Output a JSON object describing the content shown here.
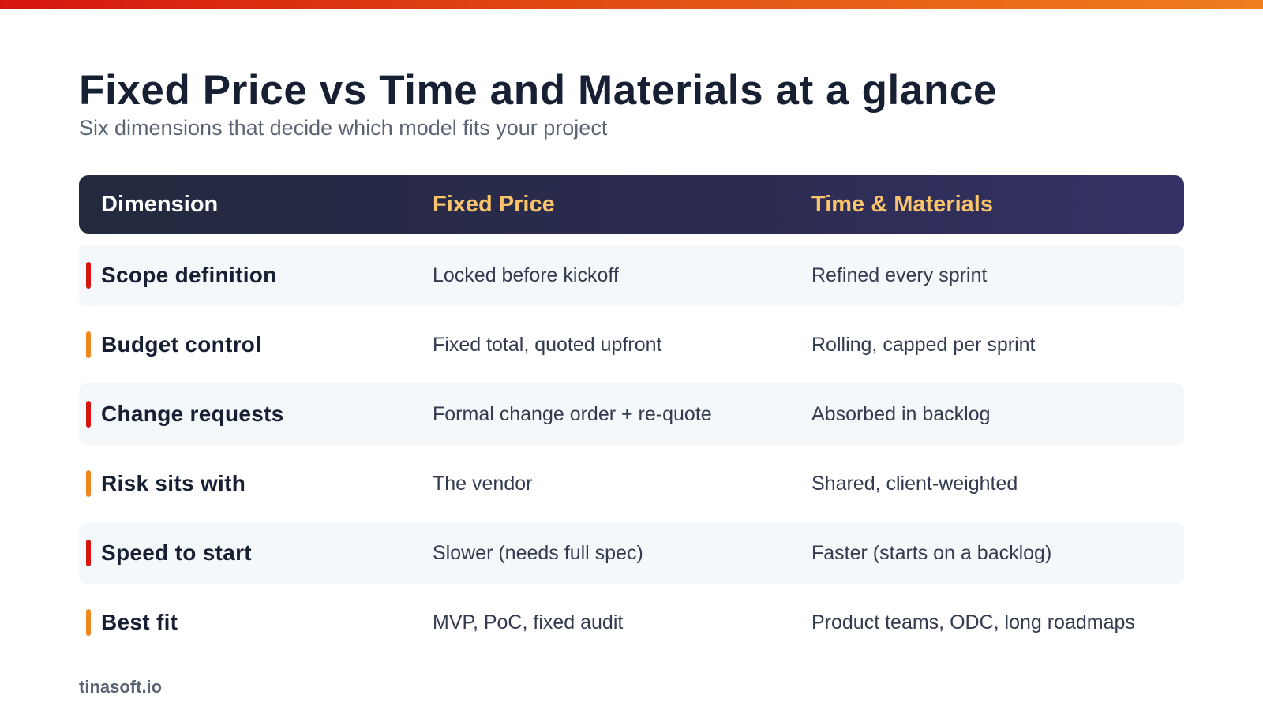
{
  "title": "Fixed Price vs Time and Materials at a glance",
  "subtitle": "Six dimensions that decide which model fits your project",
  "colors": {
    "accent_red": "#d6150f",
    "accent_orange": "#f0861e",
    "header_bg": "#2b2b4f",
    "header_highlight": "#f9c46b",
    "row_shade": "#f5f8fb"
  },
  "table": {
    "headers": {
      "dimension": "Dimension",
      "fixed_price": "Fixed Price",
      "time_materials": "Time & Materials"
    },
    "rows": [
      {
        "dimension": "Scope definition",
        "fixed_price": "Locked before kickoff",
        "time_materials": "Refined every sprint",
        "accent": "red"
      },
      {
        "dimension": "Budget control",
        "fixed_price": "Fixed total, quoted upfront",
        "time_materials": "Rolling, capped per sprint",
        "accent": "orange"
      },
      {
        "dimension": "Change requests",
        "fixed_price": "Formal change order + re-quote",
        "time_materials": "Absorbed in backlog",
        "accent": "red"
      },
      {
        "dimension": "Risk sits with",
        "fixed_price": "The vendor",
        "time_materials": "Shared, client-weighted",
        "accent": "orange"
      },
      {
        "dimension": "Speed to start",
        "fixed_price": "Slower (needs full spec)",
        "time_materials": "Faster (starts on a backlog)",
        "accent": "red"
      },
      {
        "dimension": "Best fit",
        "fixed_price": "MVP, PoC, fixed audit",
        "time_materials": "Product teams, ODC, long roadmaps",
        "accent": "orange"
      }
    ]
  },
  "footer": {
    "brand": "tinasoft.io"
  }
}
